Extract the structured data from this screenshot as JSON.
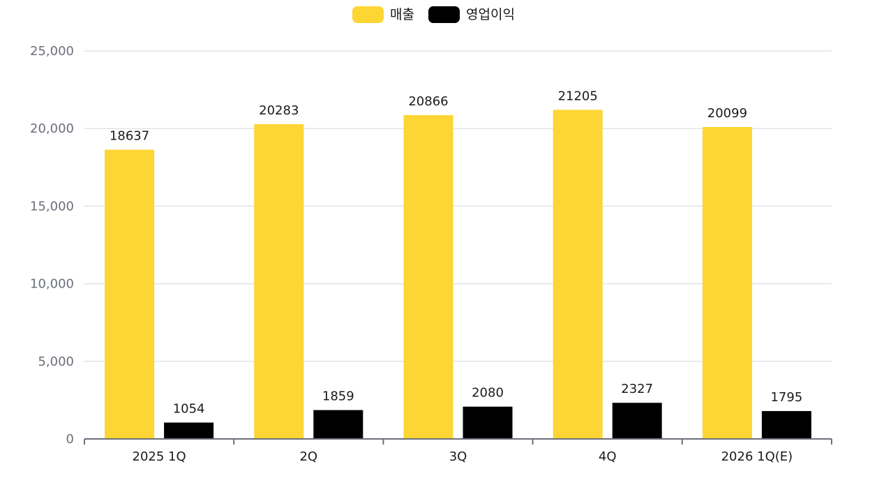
{
  "chart_data": {
    "type": "bar",
    "categories": [
      "2025 1Q",
      "2Q",
      "3Q",
      "4Q",
      "2026 1Q(E)"
    ],
    "series": [
      {
        "name": "매출",
        "color": "#fdd535",
        "values": [
          18637,
          20283,
          20866,
          21205,
          20099
        ]
      },
      {
        "name": "영업이익",
        "color": "#000000",
        "values": [
          1054,
          1859,
          2080,
          2327,
          1795
        ]
      }
    ],
    "yticks": [
      0,
      5000,
      10000,
      15000,
      20000,
      25000
    ],
    "ytick_labels": [
      "0",
      "5,000",
      "10,000",
      "15,000",
      "20,000",
      "25,000"
    ],
    "ylim": [
      0,
      25000
    ],
    "grid": true,
    "legend_position": "top-center",
    "data_labels": true
  }
}
